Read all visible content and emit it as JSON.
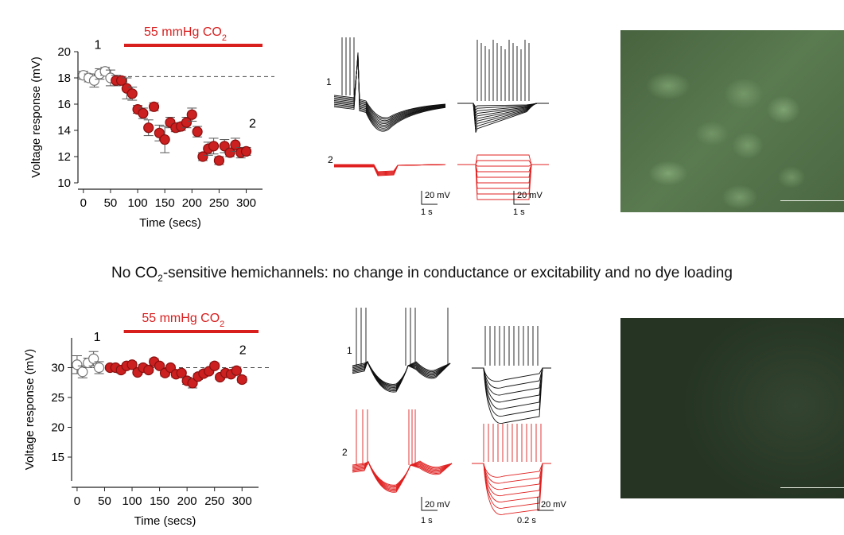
{
  "caption": {
    "pre": "No CO",
    "sub": "2",
    "post": "-sensitive hemichannels: no change in conductance or excitability and no dye loading"
  },
  "chart_data": [
    {
      "type": "scatter",
      "xlabel": "Time (secs)",
      "ylabel": "Voltage response (mV)",
      "xlim": [
        -10,
        330
      ],
      "ylim": [
        10,
        20
      ],
      "xticks": [
        0,
        50,
        100,
        150,
        200,
        250,
        300
      ],
      "yticks": [
        10,
        12,
        14,
        16,
        18,
        20
      ],
      "baseline": 18.1,
      "treatment_bar": {
        "label_pre": "55 mmHg CO",
        "label_sub": "2",
        "x_start": 75,
        "x_end": 330
      },
      "markers": {
        "label_1": "1",
        "label_1_x": 20,
        "label_1_y": 20.2,
        "label_2": "2",
        "label_2_x": 305,
        "label_2_y": 14.2
      },
      "series": [
        {
          "color": "#ffffff",
          "edge": "#777777",
          "x": [
            0,
            10,
            20,
            30,
            40,
            50
          ],
          "y": [
            18.2,
            18.0,
            17.8,
            18.3,
            18.5,
            18.0
          ],
          "err": [
            0.3,
            0.3,
            0.5,
            0.4,
            0.3,
            0.6
          ]
        },
        {
          "color": "#cc1f1f",
          "edge": "#8a0f0f",
          "x": [
            60,
            70,
            80,
            90,
            100,
            110,
            120,
            130,
            140,
            150,
            160,
            170,
            180,
            190,
            200,
            210,
            220,
            230,
            240,
            250,
            260,
            270,
            280,
            290,
            300
          ],
          "y": [
            17.8,
            17.8,
            17.2,
            16.8,
            15.6,
            15.3,
            14.2,
            15.8,
            13.8,
            13.3,
            14.6,
            14.2,
            14.3,
            14.6,
            15.2,
            13.9,
            12.0,
            12.6,
            12.8,
            11.7,
            12.8,
            12.3,
            12.9,
            12.3,
            12.4
          ],
          "err": [
            0.4,
            0.3,
            0.8,
            0.5,
            0.3,
            0.4,
            0.6,
            0.3,
            0.6,
            1.0,
            0.4,
            0.3,
            0.3,
            0.4,
            0.5,
            0.4,
            0.3,
            0.5,
            0.6,
            0.3,
            0.5,
            0.3,
            0.5,
            0.4,
            0.3
          ]
        }
      ]
    },
    {
      "type": "scatter",
      "xlabel": "Time (secs)",
      "ylabel": "Voltage response (mV)",
      "xlim": [
        -10,
        330
      ],
      "ylim": [
        11,
        35
      ],
      "xticks": [
        0,
        50,
        100,
        150,
        200,
        250,
        300
      ],
      "yticks": [
        15,
        20,
        25,
        30
      ],
      "baseline": 30,
      "treatment_bar": {
        "label_pre": "55 mmHg CO",
        "label_sub": "2",
        "x_start": 85,
        "x_end": 330
      },
      "markers": {
        "label_1": "1",
        "label_1_x": 30,
        "label_1_y": 34.5,
        "label_2": "2",
        "label_2_x": 295,
        "label_2_y": 32.3
      },
      "series": [
        {
          "color": "#ffffff",
          "edge": "#777777",
          "x": [
            0,
            10,
            20,
            30,
            40
          ],
          "y": [
            30.5,
            29.3,
            30.8,
            31.5,
            30.0
          ],
          "err": [
            1.5,
            1.0,
            0.8,
            1.2,
            1.0
          ]
        },
        {
          "color": "#cc1f1f",
          "edge": "#8a0f0f",
          "x": [
            60,
            70,
            80,
            90,
            100,
            110,
            120,
            130,
            140,
            150,
            160,
            170,
            180,
            190,
            200,
            210,
            220,
            230,
            240,
            250,
            260,
            270,
            280,
            290,
            300
          ],
          "y": [
            30.0,
            30.0,
            29.6,
            30.3,
            30.5,
            29.2,
            30.0,
            29.6,
            31.0,
            30.3,
            29.1,
            30.0,
            28.9,
            29.1,
            27.8,
            27.4,
            28.5,
            29.0,
            29.4,
            30.3,
            28.4,
            29.1,
            28.9,
            29.5,
            28.0
          ],
          "err": [
            0.4,
            0.4,
            0.5,
            0.4,
            0.5,
            0.4,
            0.5,
            0.4,
            0.5,
            0.4,
            0.5,
            0.4,
            0.5,
            0.4,
            0.6,
            0.8,
            0.5,
            0.5,
            0.4,
            0.5,
            0.4,
            0.5,
            0.4,
            0.6,
            0.5
          ]
        }
      ]
    }
  ],
  "traces_top": {
    "row1_label": "1",
    "row2_label": "2",
    "scale_left": {
      "v": "20 mV",
      "t": "1 s"
    },
    "scale_right": {
      "v": "20 mV",
      "t": "1 s"
    },
    "color_row1": "#111111",
    "color_row2": "#e02020"
  },
  "traces_bot": {
    "row1_label": "1",
    "row2_label": "2",
    "scale_left": {
      "v": "20 mV",
      "t": "1 s"
    },
    "scale_right": {
      "v": "20 mV",
      "t": "0.2 s"
    },
    "color_row1": "#111111",
    "color_row2": "#e02020"
  },
  "micrographs": {
    "top_color": "#5a7a50",
    "bottom_color": "#263424"
  }
}
